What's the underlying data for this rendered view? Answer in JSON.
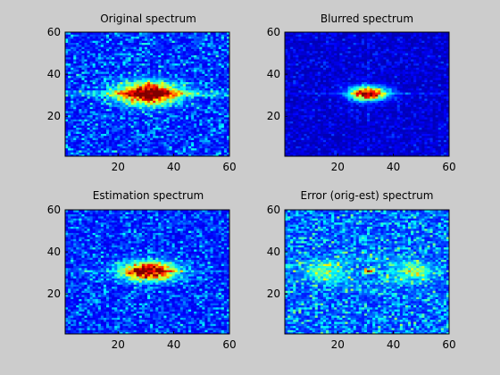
{
  "chart_data": [
    {
      "type": "heatmap",
      "title": "Original spectrum",
      "xlim": [
        1,
        60
      ],
      "ylim": [
        1,
        60
      ],
      "xticks": [
        20,
        40,
        60
      ],
      "yticks": [
        20,
        40,
        60
      ],
      "grid_size": 60,
      "colormap": "jet",
      "pattern": {
        "center": [
          31,
          31
        ],
        "spread_x": 7.5,
        "spread_y": 3.5,
        "peak": 1.0,
        "noise": 0.22,
        "floor": 0.1,
        "line_strength": 0.55,
        "line_width": 2,
        "ring": 0
      }
    },
    {
      "type": "heatmap",
      "title": "Blurred spectrum",
      "xlim": [
        1,
        60
      ],
      "ylim": [
        1,
        60
      ],
      "xticks": [
        20,
        40,
        60
      ],
      "yticks": [
        20,
        40,
        60
      ],
      "grid_size": 60,
      "colormap": "jet",
      "pattern": {
        "center": [
          31,
          31
        ],
        "spread_x": 4.5,
        "spread_y": 2.2,
        "peak": 1.0,
        "noise": 0.1,
        "floor": 0.05,
        "line_strength": 0.3,
        "line_width": 1,
        "ring": 0
      }
    },
    {
      "type": "heatmap",
      "title": "Estimation spectrum",
      "xlim": [
        1,
        60
      ],
      "ylim": [
        1,
        60
      ],
      "xticks": [
        20,
        40,
        60
      ],
      "yticks": [
        20,
        40,
        60
      ],
      "grid_size": 60,
      "colormap": "jet",
      "pattern": {
        "center": [
          31,
          31
        ],
        "spread_x": 6.5,
        "spread_y": 3.0,
        "peak": 1.0,
        "noise": 0.2,
        "floor": 0.1,
        "line_strength": 0.35,
        "line_width": 1,
        "ring": 0
      }
    },
    {
      "type": "heatmap",
      "title": "Error (orig-est) spectrum",
      "xlim": [
        1,
        60
      ],
      "ylim": [
        1,
        60
      ],
      "xticks": [
        20,
        40,
        60
      ],
      "yticks": [
        20,
        40,
        60
      ],
      "grid_size": 60,
      "colormap": "jet",
      "pattern": {
        "center": [
          31,
          31
        ],
        "spread_x": 1.2,
        "spread_y": 0.8,
        "peak": 0.85,
        "noise": 0.25,
        "floor": 0.14,
        "line_strength": 0.15,
        "line_width": 1,
        "ring": 0.38
      }
    }
  ]
}
